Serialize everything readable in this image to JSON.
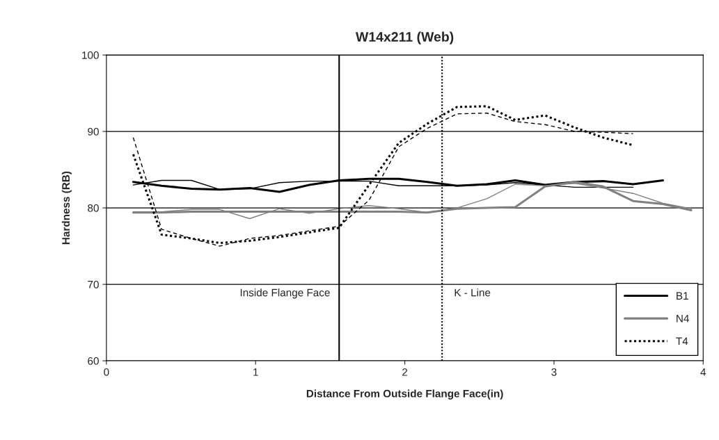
{
  "chart_data": {
    "type": "line",
    "title": "W14x211 (Web)",
    "xlabel": "Distance From Outside Flange Face(in)",
    "ylabel": "Hardness (RB)",
    "xlim": [
      0,
      4
    ],
    "xticks": [
      0,
      1,
      2,
      3,
      4
    ],
    "ylim": [
      60,
      100
    ],
    "yticks": [
      60,
      70,
      80,
      90,
      100
    ],
    "grid": "y",
    "legend": "bottom right",
    "marker": "none",
    "x": [
      0.18,
      0.37,
      0.57,
      0.76,
      0.96,
      1.16,
      1.36,
      1.56,
      1.76,
      1.96,
      2.15,
      2.35,
      2.55,
      2.74,
      2.94,
      3.14,
      3.33,
      3.53,
      3.73,
      3.92
    ],
    "series": [
      {
        "name": "B1",
        "color": "#000000",
        "line_style": "solid",
        "values": [
          83.4,
          82.9,
          82.5,
          82.4,
          82.6,
          82.1,
          83.0,
          83.6,
          83.8,
          83.8,
          83.4,
          82.9,
          83.1,
          83.6,
          83.0,
          83.4,
          83.5,
          83.1,
          83.6,
          null
        ]
      },
      {
        "color": "#000000",
        "line_style": "solid",
        "values": [
          83.0,
          83.6,
          83.6,
          82.4,
          82.5,
          83.3,
          83.5,
          83.5,
          83.5,
          82.9,
          82.9,
          82.9,
          83.0,
          83.3,
          83.0,
          82.7,
          82.7,
          82.7,
          null,
          null
        ]
      },
      {
        "name": "N4",
        "color": "#808080",
        "line_style": "solid",
        "values": [
          79.4,
          79.4,
          79.5,
          79.5,
          79.5,
          79.5,
          79.5,
          79.5,
          79.5,
          79.5,
          79.4,
          79.9,
          80.0,
          80.1,
          82.8,
          83.4,
          82.8,
          80.9,
          80.5,
          79.7
        ]
      },
      {
        "color": "#808080",
        "line_style": "solid",
        "values": [
          79.5,
          79.5,
          79.8,
          79.8,
          78.6,
          79.9,
          79.3,
          79.9,
          80.3,
          79.9,
          79.4,
          80.0,
          81.2,
          83.1,
          82.9,
          83.2,
          82.6,
          81.9,
          80.6,
          79.9
        ]
      },
      {
        "name": "T4",
        "color": "#000000",
        "line_style": "dotted",
        "values": [
          87.0,
          76.5,
          76.0,
          75.4,
          75.7,
          76.2,
          76.8,
          77.4,
          83.0,
          88.5,
          91.0,
          93.2,
          93.3,
          91.5,
          92.1,
          90.5,
          89.2,
          88.2,
          null,
          null
        ]
      },
      {
        "color": "#000000",
        "line_style": "dashed",
        "values": [
          89.2,
          77.2,
          76.0,
          75.0,
          76.0,
          76.4,
          77.0,
          77.6,
          81.0,
          88.0,
          90.4,
          92.3,
          92.4,
          91.3,
          90.9,
          90.0,
          89.9,
          89.7,
          null,
          null
        ]
      }
    ],
    "ref_lines": [
      {
        "axis": "x",
        "value": 1.56,
        "label": "Inside Flange Face",
        "color": "#000000",
        "line_style": "solid"
      },
      {
        "axis": "x",
        "value": 2.25,
        "label": "K - Line",
        "color": "#000000",
        "line_style": "dotted"
      }
    ]
  }
}
